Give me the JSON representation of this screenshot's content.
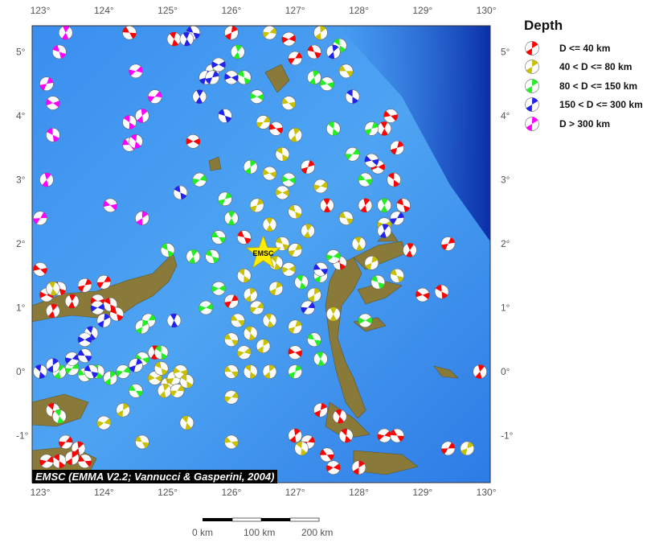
{
  "legend": {
    "title": "Depth",
    "items": [
      {
        "label": "D <= 40 km",
        "color": "#ff0000"
      },
      {
        "label": "40 < D <= 80 km",
        "color": "#c8c000"
      },
      {
        "label": "80 < D <= 150 km",
        "color": "#22ee22"
      },
      {
        "label": "150 < D <= 300 km",
        "color": "#2222ee"
      },
      {
        "label": "D > 300 km",
        "color": "#ff00ff"
      }
    ]
  },
  "credit": "EMSC (EMMA V2.2; Vannucci & Gasperini, 2004)",
  "marker_label": "EMSC",
  "marker": {
    "lon": 126.5,
    "lat": 1.85
  },
  "axes": {
    "lon_ticks": [
      "123°",
      "124°",
      "125°",
      "126°",
      "127°",
      "128°",
      "129°",
      "130°"
    ],
    "lat_ticks": [
      "5°",
      "4°",
      "3°",
      "2°",
      "1°",
      "0°",
      "-1°"
    ]
  },
  "scale_bar": {
    "labels": [
      "0 km",
      "100 km",
      "200 km"
    ]
  },
  "map": {
    "lon_range": [
      122.9,
      130.05
    ],
    "lat_range": [
      -1.72,
      5.4
    ],
    "events": [
      [
        123.1,
        1.2,
        0
      ],
      [
        123.3,
        1.3,
        0
      ],
      [
        123.5,
        1.1,
        0
      ],
      [
        123.7,
        1.35,
        0
      ],
      [
        123.9,
        1.1,
        0
      ],
      [
        124.1,
        1.05,
        0
      ],
      [
        123.2,
        0.95,
        0
      ],
      [
        124.0,
        1.4,
        0
      ],
      [
        123.0,
        1.6,
        0
      ],
      [
        123.3,
        -1.4,
        0
      ],
      [
        123.6,
        -1.2,
        0
      ],
      [
        123.4,
        -1.1,
        0
      ],
      [
        123.7,
        -1.4,
        0
      ],
      [
        123.2,
        -0.6,
        0
      ],
      [
        123.5,
        -1.35,
        0
      ],
      [
        123.1,
        -1.4,
        0
      ],
      [
        124.4,
        5.3,
        0
      ],
      [
        125.1,
        5.2,
        0
      ],
      [
        126.0,
        5.3,
        0
      ],
      [
        126.9,
        5.2,
        0
      ],
      [
        127.3,
        5.0,
        0
      ],
      [
        128.4,
        3.8,
        0
      ],
      [
        128.6,
        3.5,
        0
      ],
      [
        128.3,
        3.2,
        0
      ],
      [
        128.7,
        2.6,
        0
      ],
      [
        128.8,
        1.9,
        0
      ],
      [
        129.4,
        2.0,
        0
      ],
      [
        129.0,
        1.2,
        0
      ],
      [
        129.3,
        1.25,
        0
      ],
      [
        129.9,
        0.0,
        0
      ],
      [
        129.4,
        -1.2,
        0
      ],
      [
        128.5,
        4.0,
        0
      ],
      [
        128.55,
        3.0,
        0
      ],
      [
        127.0,
        -1.0,
        0
      ],
      [
        127.2,
        -1.1,
        0
      ],
      [
        127.5,
        -1.3,
        0
      ],
      [
        127.8,
        -1.0,
        0
      ],
      [
        128.0,
        -1.5,
        0
      ],
      [
        128.4,
        -1.0,
        0
      ],
      [
        128.6,
        -1.0,
        0
      ],
      [
        127.7,
        -0.7,
        0
      ],
      [
        127.4,
        -0.6,
        0
      ],
      [
        127.6,
        -1.5,
        0
      ],
      [
        126.2,
        2.1,
        0
      ],
      [
        127.5,
        2.6,
        0
      ],
      [
        127.2,
        3.2,
        0
      ],
      [
        125.4,
        3.6,
        0
      ],
      [
        124.2,
        0.9,
        0
      ],
      [
        124.8,
        0.3,
        0
      ],
      [
        126.0,
        1.1,
        0
      ],
      [
        127.0,
        0.3,
        0
      ],
      [
        127.7,
        1.7,
        0
      ],
      [
        128.1,
        2.6,
        0
      ],
      [
        127.0,
        4.9,
        0
      ],
      [
        126.7,
        3.8,
        0
      ],
      [
        126.2,
        1.5,
        1
      ],
      [
        126.3,
        1.2,
        1
      ],
      [
        126.4,
        1.0,
        1
      ],
      [
        126.1,
        0.8,
        1
      ],
      [
        126.3,
        0.6,
        1
      ],
      [
        126.5,
        0.4,
        1
      ],
      [
        126.2,
        0.3,
        1
      ],
      [
        126.0,
        0.5,
        1
      ],
      [
        126.6,
        0.8,
        1
      ],
      [
        126.7,
        1.3,
        1
      ],
      [
        126.9,
        1.6,
        1
      ],
      [
        126.8,
        2.0,
        1
      ],
      [
        126.6,
        2.3,
        1
      ],
      [
        126.4,
        2.6,
        1
      ],
      [
        126.8,
        2.8,
        1
      ],
      [
        127.0,
        2.5,
        1
      ],
      [
        127.2,
        2.2,
        1
      ],
      [
        127.0,
        1.9,
        1
      ],
      [
        126.6,
        3.1,
        1
      ],
      [
        126.8,
        3.4,
        1
      ],
      [
        127.0,
        3.7,
        1
      ],
      [
        126.5,
        3.9,
        1
      ],
      [
        126.9,
        4.2,
        1
      ],
      [
        126.3,
        0.0,
        1
      ],
      [
        126.6,
        0.0,
        1
      ],
      [
        126.0,
        -0.4,
        1
      ],
      [
        126.0,
        0.0,
        1
      ],
      [
        126.7,
        1.7,
        1
      ],
      [
        127.3,
        1.2,
        1
      ],
      [
        127.4,
        2.9,
        1
      ],
      [
        127.8,
        2.4,
        1
      ],
      [
        128.0,
        2.0,
        1
      ],
      [
        128.2,
        1.7,
        1
      ],
      [
        128.4,
        2.3,
        1
      ],
      [
        128.6,
        1.5,
        1
      ],
      [
        127.6,
        0.9,
        1
      ],
      [
        127.0,
        0.7,
        1
      ],
      [
        124.8,
        -0.1,
        1
      ],
      [
        124.9,
        0.05,
        1
      ],
      [
        125.0,
        -0.2,
        1
      ],
      [
        125.1,
        -0.1,
        1
      ],
      [
        125.2,
        0.0,
        1
      ],
      [
        125.3,
        -0.15,
        1
      ],
      [
        124.95,
        -0.3,
        1
      ],
      [
        125.15,
        -0.3,
        1
      ],
      [
        126.0,
        -1.1,
        1
      ],
      [
        127.1,
        -1.2,
        1
      ],
      [
        127.4,
        5.3,
        1
      ],
      [
        126.6,
        5.3,
        1
      ],
      [
        127.8,
        4.7,
        1
      ],
      [
        125.3,
        -0.8,
        1
      ],
      [
        124.3,
        -0.6,
        1
      ],
      [
        124.0,
        -0.8,
        1
      ],
      [
        124.6,
        -1.1,
        1
      ],
      [
        123.2,
        1.3,
        1
      ],
      [
        129.7,
        -1.2,
        1
      ],
      [
        125.8,
        1.3,
        2
      ],
      [
        125.7,
        1.8,
        2
      ],
      [
        126.0,
        2.4,
        2
      ],
      [
        125.9,
        2.7,
        2
      ],
      [
        126.4,
        4.3,
        2
      ],
      [
        126.2,
        4.6,
        2
      ],
      [
        126.1,
        5.0,
        2
      ],
      [
        125.7,
        4.7,
        2
      ],
      [
        127.5,
        4.5,
        2
      ],
      [
        127.7,
        5.1,
        2
      ],
      [
        127.3,
        4.6,
        2
      ],
      [
        127.9,
        3.4,
        2
      ],
      [
        128.1,
        3.0,
        2
      ],
      [
        127.6,
        3.8,
        2
      ],
      [
        126.3,
        3.2,
        2
      ],
      [
        125.5,
        3.0,
        2
      ],
      [
        125.8,
        2.1,
        2
      ],
      [
        127.1,
        1.4,
        2
      ],
      [
        127.4,
        1.5,
        2
      ],
      [
        127.6,
        1.8,
        2
      ],
      [
        127.3,
        0.5,
        2
      ],
      [
        127.4,
        0.2,
        2
      ],
      [
        127.0,
        0.0,
        2
      ],
      [
        128.1,
        0.8,
        2
      ],
      [
        128.3,
        1.4,
        2
      ],
      [
        128.4,
        2.6,
        2
      ],
      [
        128.2,
        3.8,
        2
      ],
      [
        126.9,
        3.0,
        2
      ],
      [
        125.0,
        1.9,
        2
      ],
      [
        125.4,
        1.8,
        2
      ],
      [
        124.7,
        0.8,
        2
      ],
      [
        124.6,
        0.2,
        2
      ],
      [
        124.9,
        0.3,
        2
      ],
      [
        123.3,
        0.0,
        2
      ],
      [
        123.5,
        0.05,
        2
      ],
      [
        123.7,
        -0.05,
        2
      ],
      [
        123.9,
        0.0,
        2
      ],
      [
        124.1,
        -0.1,
        2
      ],
      [
        124.3,
        0.0,
        2
      ],
      [
        124.5,
        -0.3,
        2
      ],
      [
        123.3,
        -0.7,
        2
      ],
      [
        124.6,
        0.7,
        2
      ],
      [
        125.6,
        1.0,
        2
      ],
      [
        125.4,
        5.3,
        3
      ],
      [
        125.3,
        5.2,
        3
      ],
      [
        125.6,
        4.6,
        3
      ],
      [
        125.8,
        4.8,
        3
      ],
      [
        125.9,
        4.0,
        3
      ],
      [
        125.5,
        4.3,
        3
      ],
      [
        125.7,
        4.6,
        3
      ],
      [
        126.0,
        4.6,
        3
      ],
      [
        125.2,
        2.8,
        3
      ],
      [
        128.4,
        2.2,
        3
      ],
      [
        128.6,
        2.4,
        3
      ],
      [
        128.2,
        3.3,
        3
      ],
      [
        127.9,
        4.3,
        3
      ],
      [
        127.6,
        5.0,
        3
      ],
      [
        127.2,
        1.0,
        3
      ],
      [
        127.4,
        1.6,
        3
      ],
      [
        123.0,
        0.0,
        3
      ],
      [
        123.2,
        0.1,
        3
      ],
      [
        123.5,
        0.2,
        3
      ],
      [
        123.7,
        0.25,
        3
      ],
      [
        123.8,
        0.6,
        3
      ],
      [
        124.0,
        0.8,
        3
      ],
      [
        123.9,
        1.0,
        3
      ],
      [
        123.8,
        0.0,
        3
      ],
      [
        125.1,
        0.8,
        3
      ],
      [
        124.5,
        0.1,
        3
      ],
      [
        123.7,
        0.5,
        3
      ],
      [
        123.3,
        5.0,
        4
      ],
      [
        123.4,
        5.3,
        4
      ],
      [
        123.1,
        4.5,
        4
      ],
      [
        123.2,
        4.2,
        4
      ],
      [
        123.2,
        3.7,
        4
      ],
      [
        123.1,
        3.0,
        4
      ],
      [
        123.0,
        2.4,
        4
      ],
      [
        124.1,
        2.6,
        4
      ],
      [
        124.4,
        3.9,
        4
      ],
      [
        124.6,
        4.0,
        4
      ],
      [
        124.8,
        4.3,
        4
      ],
      [
        124.4,
        3.55,
        4
      ],
      [
        124.5,
        3.6,
        4
      ],
      [
        124.6,
        2.4,
        4
      ],
      [
        124.5,
        4.7,
        4
      ]
    ]
  }
}
